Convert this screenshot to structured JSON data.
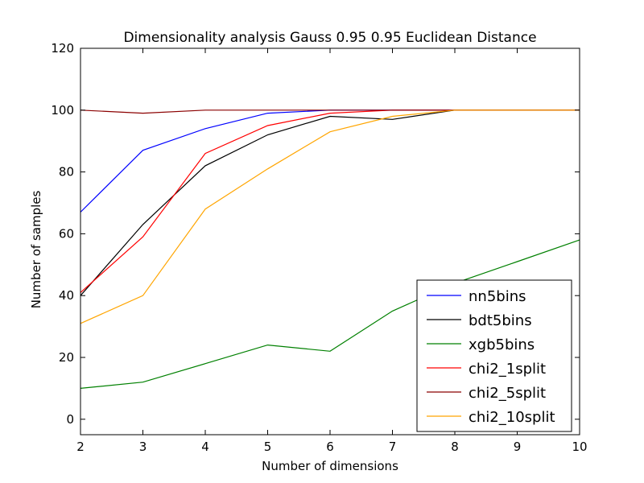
{
  "chart_data": {
    "type": "line",
    "title": "Dimensionality analysis Gauss 0.95 0.95 Euclidean Distance",
    "xlabel": "Number of dimensions",
    "ylabel": "Number of samples",
    "xlim": [
      2,
      10
    ],
    "ylim": [
      -5,
      120
    ],
    "xticks": [
      2,
      3,
      4,
      5,
      6,
      7,
      8,
      9,
      10
    ],
    "yticks": [
      0,
      20,
      40,
      60,
      80,
      100,
      120
    ],
    "grid": false,
    "legend_position": "lower-right",
    "x": [
      2,
      3,
      4,
      5,
      6,
      7,
      8,
      9,
      10
    ],
    "series": [
      {
        "name": "nn5bins",
        "color": "#0000ff",
        "values": [
          67,
          87,
          94,
          99,
          100,
          100,
          100,
          100,
          100
        ]
      },
      {
        "name": "bdt5bins",
        "color": "#000000",
        "values": [
          40,
          63,
          82,
          92,
          98,
          97,
          100,
          100,
          100
        ]
      },
      {
        "name": "xgb5bins",
        "color": "#008000",
        "values": [
          10,
          12,
          18,
          24,
          22,
          35,
          44,
          51,
          58
        ]
      },
      {
        "name": "chi2_1split",
        "color": "#ff0000",
        "values": [
          41,
          59,
          86,
          95,
          99,
          100,
          100,
          100,
          100
        ]
      },
      {
        "name": "chi2_5split",
        "color": "#8b0000",
        "values": [
          100,
          99,
          100,
          100,
          100,
          100,
          100,
          100,
          100
        ]
      },
      {
        "name": "chi2_10split",
        "color": "#ffa500",
        "values": [
          31,
          40,
          68,
          81,
          93,
          98,
          100,
          100,
          100
        ]
      }
    ]
  }
}
